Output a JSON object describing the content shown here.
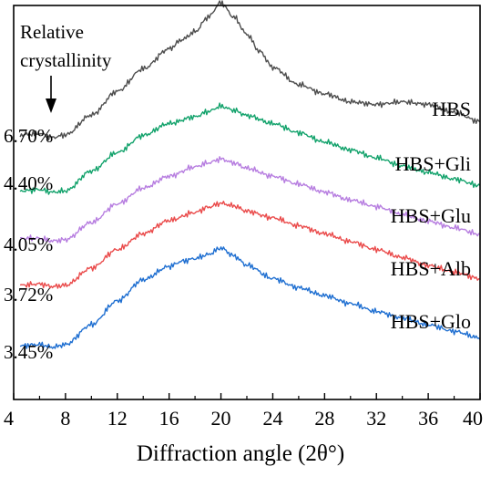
{
  "chart_data": {
    "type": "line",
    "xlabel": "Diffraction angle (2θ°)",
    "ylabel": "",
    "xlim": [
      4,
      40
    ],
    "x_ticks": [
      4,
      8,
      12,
      16,
      20,
      24,
      28,
      32,
      36,
      40
    ],
    "annotation": [
      "Relative",
      "crystallinity"
    ],
    "grid": false,
    "legend": "none",
    "series": [
      {
        "name": "HBS",
        "crystallinity": "6.70%",
        "color": "#4d4d4d",
        "points": [
          [
            4.5,
            0.07
          ],
          [
            6,
            0.08
          ],
          [
            7,
            0.05
          ],
          [
            8,
            0.07
          ],
          [
            10,
            0.22
          ],
          [
            12,
            0.4
          ],
          [
            14,
            0.57
          ],
          [
            16,
            0.72
          ],
          [
            17,
            0.79
          ],
          [
            18,
            0.85
          ],
          [
            19,
            0.96
          ],
          [
            20,
            1.07
          ],
          [
            21,
            0.96
          ],
          [
            22,
            0.83
          ],
          [
            23,
            0.7
          ],
          [
            24,
            0.58
          ],
          [
            26,
            0.45
          ],
          [
            28,
            0.38
          ],
          [
            30,
            0.32
          ],
          [
            32,
            0.3
          ],
          [
            34,
            0.32
          ],
          [
            36,
            0.3
          ],
          [
            38,
            0.24
          ],
          [
            40,
            0.17
          ]
        ]
      },
      {
        "name": "HBS+Gli",
        "crystallinity": "4.40%",
        "color": "#12a26b",
        "points": [
          [
            4.5,
            0.06
          ],
          [
            6,
            0.07
          ],
          [
            7,
            0.05
          ],
          [
            8,
            0.06
          ],
          [
            10,
            0.21
          ],
          [
            12,
            0.35
          ],
          [
            14,
            0.48
          ],
          [
            16,
            0.57
          ],
          [
            18,
            0.62
          ],
          [
            19,
            0.66
          ],
          [
            20,
            0.7
          ],
          [
            21,
            0.67
          ],
          [
            22,
            0.63
          ],
          [
            24,
            0.57
          ],
          [
            26,
            0.5
          ],
          [
            28,
            0.43
          ],
          [
            30,
            0.37
          ],
          [
            32,
            0.31
          ],
          [
            34,
            0.25
          ],
          [
            36,
            0.2
          ],
          [
            38,
            0.15
          ],
          [
            40,
            0.1
          ]
        ]
      },
      {
        "name": "HBS+Glu",
        "crystallinity": "4.05%",
        "color": "#b77ee0",
        "points": [
          [
            4.5,
            0.06
          ],
          [
            6,
            0.06
          ],
          [
            7,
            0.04
          ],
          [
            8,
            0.05
          ],
          [
            10,
            0.18
          ],
          [
            12,
            0.32
          ],
          [
            14,
            0.44
          ],
          [
            16,
            0.53
          ],
          [
            18,
            0.6
          ],
          [
            19,
            0.63
          ],
          [
            20,
            0.66
          ],
          [
            21,
            0.63
          ],
          [
            22,
            0.59
          ],
          [
            24,
            0.53
          ],
          [
            26,
            0.47
          ],
          [
            28,
            0.41
          ],
          [
            30,
            0.35
          ],
          [
            32,
            0.3
          ],
          [
            34,
            0.24
          ],
          [
            36,
            0.19
          ],
          [
            38,
            0.14
          ],
          [
            40,
            0.09
          ]
        ]
      },
      {
        "name": "HBS+Alb",
        "crystallinity": "3.72%",
        "color": "#ea4b4b",
        "points": [
          [
            4.5,
            0.05
          ],
          [
            6,
            0.06
          ],
          [
            7,
            0.04
          ],
          [
            8,
            0.05
          ],
          [
            10,
            0.18
          ],
          [
            12,
            0.32
          ],
          [
            14,
            0.44
          ],
          [
            16,
            0.54
          ],
          [
            18,
            0.6
          ],
          [
            19,
            0.64
          ],
          [
            20,
            0.67
          ],
          [
            21,
            0.65
          ],
          [
            22,
            0.61
          ],
          [
            24,
            0.56
          ],
          [
            26,
            0.5
          ],
          [
            28,
            0.44
          ],
          [
            30,
            0.38
          ],
          [
            32,
            0.32
          ],
          [
            34,
            0.26
          ],
          [
            36,
            0.2
          ],
          [
            38,
            0.15
          ],
          [
            40,
            0.1
          ]
        ]
      },
      {
        "name": "HBS+Glo",
        "crystallinity": "3.45%",
        "color": "#1f6fd1",
        "points": [
          [
            4.5,
            0.04
          ],
          [
            6,
            0.05
          ],
          [
            7,
            0.03
          ],
          [
            8,
            0.05
          ],
          [
            10,
            0.2
          ],
          [
            12,
            0.38
          ],
          [
            14,
            0.54
          ],
          [
            16,
            0.64
          ],
          [
            17,
            0.68
          ],
          [
            18,
            0.7
          ],
          [
            19,
            0.73
          ],
          [
            20,
            0.78
          ],
          [
            21,
            0.72
          ],
          [
            22,
            0.65
          ],
          [
            24,
            0.55
          ],
          [
            26,
            0.48
          ],
          [
            28,
            0.42
          ],
          [
            30,
            0.36
          ],
          [
            32,
            0.3
          ],
          [
            34,
            0.25
          ],
          [
            36,
            0.2
          ],
          [
            38,
            0.15
          ],
          [
            40,
            0.1
          ]
        ]
      }
    ]
  }
}
